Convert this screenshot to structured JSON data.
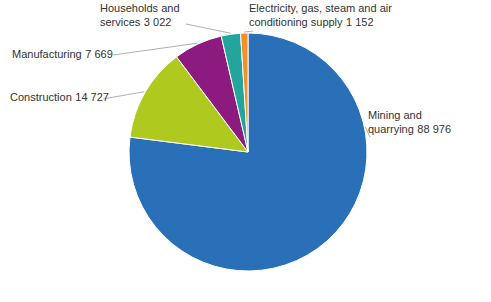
{
  "chart_data": {
    "type": "pie",
    "categories": [
      "Mining and quarrying",
      "Construction",
      "Manufacturing",
      "Households and services",
      "Electricity, gas, steam and air conditioning supply"
    ],
    "values": [
      88976,
      14727,
      7669,
      3022,
      1152
    ],
    "value_labels": [
      "88 976",
      "14 727",
      "7 669",
      "3 022",
      "1 152"
    ],
    "colors": [
      "#2a70b8",
      "#afc91e",
      "#8c1a7f",
      "#23a59d",
      "#f0922a"
    ],
    "data_labels": true
  }
}
